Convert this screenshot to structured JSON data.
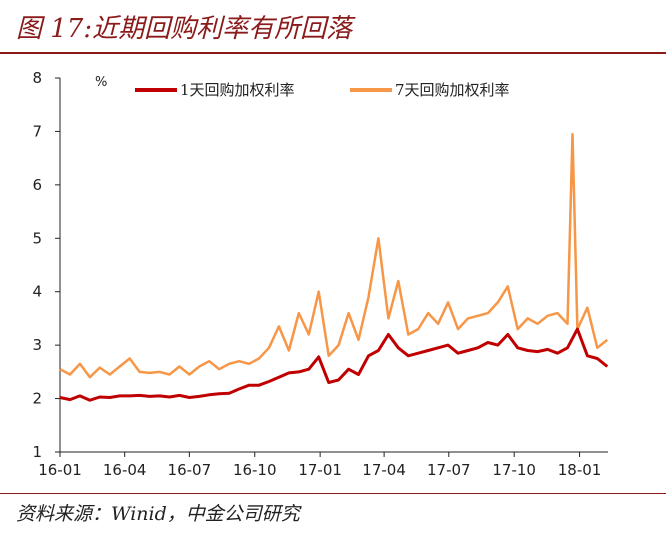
{
  "header": {
    "title": "图 17:近期回购利率有所回落"
  },
  "footer": {
    "source": "资料来源：Winid，中金公司研究"
  },
  "chart_data": {
    "type": "line",
    "title": "近期回购利率有所回落",
    "unit": "%",
    "ylim": [
      1,
      8
    ],
    "yticks": [
      1,
      2,
      3,
      4,
      5,
      6,
      7,
      8
    ],
    "xlim": [
      "2016-01-01",
      "2018-02-10"
    ],
    "xticks": [
      {
        "date": "2016-01-01",
        "label": "16-01"
      },
      {
        "date": "2016-04-01",
        "label": "16-04"
      },
      {
        "date": "2016-07-01",
        "label": "16-07"
      },
      {
        "date": "2016-10-01",
        "label": "16-10"
      },
      {
        "date": "2017-01-01",
        "label": "17-01"
      },
      {
        "date": "2017-04-01",
        "label": "17-04"
      },
      {
        "date": "2017-07-01",
        "label": "17-07"
      },
      {
        "date": "2017-10-01",
        "label": "17-10"
      },
      {
        "date": "2018-01-01",
        "label": "18-01"
      }
    ],
    "grid": false,
    "legend": "top",
    "series": [
      {
        "name": "1天回购加权利率",
        "color": "#c00000",
        "x": [
          "2016-01-01",
          "2016-01-15",
          "2016-01-29",
          "2016-02-12",
          "2016-02-26",
          "2016-03-11",
          "2016-03-25",
          "2016-04-08",
          "2016-04-22",
          "2016-05-06",
          "2016-05-20",
          "2016-06-03",
          "2016-06-17",
          "2016-07-01",
          "2016-07-15",
          "2016-07-29",
          "2016-08-12",
          "2016-08-26",
          "2016-09-09",
          "2016-09-23",
          "2016-10-07",
          "2016-10-21",
          "2016-11-04",
          "2016-11-18",
          "2016-12-02",
          "2016-12-16",
          "2016-12-30",
          "2017-01-13",
          "2017-01-27",
          "2017-02-10",
          "2017-02-24",
          "2017-03-10",
          "2017-03-24",
          "2017-04-07",
          "2017-04-21",
          "2017-05-05",
          "2017-05-19",
          "2017-06-02",
          "2017-06-16",
          "2017-06-30",
          "2017-07-14",
          "2017-07-28",
          "2017-08-11",
          "2017-08-25",
          "2017-09-08",
          "2017-09-22",
          "2017-10-06",
          "2017-10-20",
          "2017-11-03",
          "2017-11-17",
          "2017-12-01",
          "2017-12-15",
          "2017-12-29",
          "2018-01-12",
          "2018-01-26",
          "2018-02-09"
        ],
        "values": [
          2.02,
          1.98,
          2.05,
          1.97,
          2.03,
          2.02,
          2.05,
          2.05,
          2.06,
          2.04,
          2.05,
          2.03,
          2.06,
          2.02,
          2.04,
          2.07,
          2.09,
          2.1,
          2.18,
          2.25,
          2.25,
          2.32,
          2.4,
          2.48,
          2.5,
          2.55,
          2.78,
          2.3,
          2.35,
          2.55,
          2.45,
          2.8,
          2.9,
          3.2,
          2.95,
          2.8,
          2.85,
          2.9,
          2.95,
          3.0,
          2.85,
          2.9,
          2.95,
          3.05,
          3.0,
          3.2,
          2.95,
          2.9,
          2.88,
          2.92,
          2.85,
          2.95,
          3.3,
          2.8,
          2.75,
          2.6
        ]
      },
      {
        "name": "7天回购加权利率",
        "color": "#f79646",
        "x": [
          "2016-01-01",
          "2016-01-15",
          "2016-01-29",
          "2016-02-12",
          "2016-02-26",
          "2016-03-11",
          "2016-03-25",
          "2016-04-08",
          "2016-04-22",
          "2016-05-06",
          "2016-05-20",
          "2016-06-03",
          "2016-06-17",
          "2016-07-01",
          "2016-07-15",
          "2016-07-29",
          "2016-08-12",
          "2016-08-26",
          "2016-09-09",
          "2016-09-23",
          "2016-10-07",
          "2016-10-21",
          "2016-11-04",
          "2016-11-18",
          "2016-12-02",
          "2016-12-16",
          "2016-12-30",
          "2017-01-13",
          "2017-01-27",
          "2017-02-10",
          "2017-02-24",
          "2017-03-10",
          "2017-03-24",
          "2017-04-07",
          "2017-04-21",
          "2017-05-05",
          "2017-05-19",
          "2017-06-02",
          "2017-06-16",
          "2017-06-30",
          "2017-07-14",
          "2017-07-28",
          "2017-08-11",
          "2017-08-25",
          "2017-09-08",
          "2017-09-22",
          "2017-10-06",
          "2017-10-20",
          "2017-11-03",
          "2017-11-17",
          "2017-12-01",
          "2017-12-15",
          "2017-12-22",
          "2017-12-29",
          "2018-01-12",
          "2018-01-26",
          "2018-02-09"
        ],
        "values": [
          2.55,
          2.45,
          2.65,
          2.4,
          2.58,
          2.45,
          2.6,
          2.75,
          2.5,
          2.48,
          2.5,
          2.45,
          2.6,
          2.45,
          2.6,
          2.7,
          2.55,
          2.65,
          2.7,
          2.65,
          2.75,
          2.95,
          3.35,
          2.9,
          3.6,
          3.2,
          4.0,
          2.8,
          3.0,
          3.6,
          3.1,
          3.9,
          5.0,
          3.5,
          4.2,
          3.2,
          3.3,
          3.6,
          3.4,
          3.8,
          3.3,
          3.5,
          3.55,
          3.6,
          3.8,
          4.1,
          3.3,
          3.5,
          3.4,
          3.55,
          3.6,
          3.4,
          6.95,
          3.3,
          3.7,
          2.95,
          3.1
        ]
      }
    ]
  }
}
